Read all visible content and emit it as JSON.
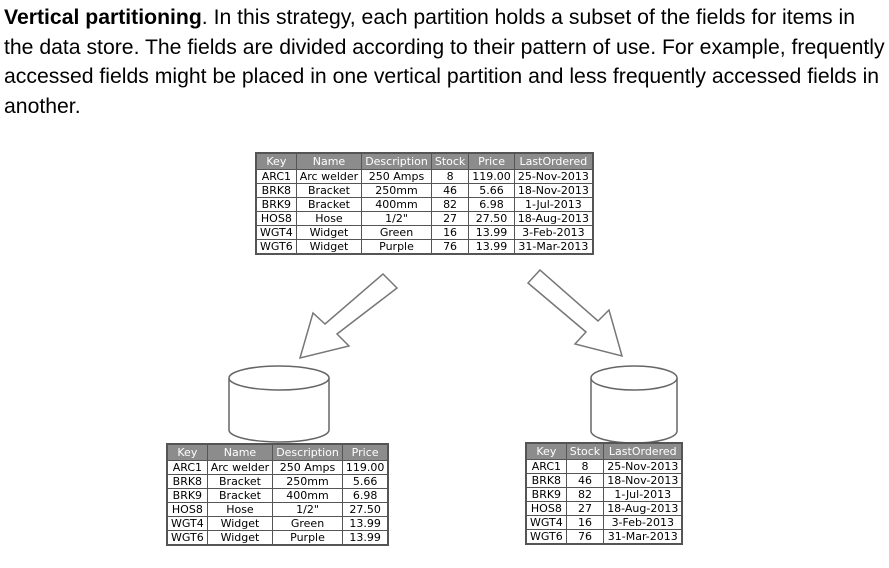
{
  "intro": {
    "term": "Vertical partitioning",
    "text": ". In this strategy, each partition holds a subset of the fields for items in the data store. The fields are divided according to their pattern of use. For example, frequently accessed fields might be placed in one vertical partition and less frequently accessed fields in another."
  },
  "source_table": {
    "headers": [
      "Key",
      "Name",
      "Description",
      "Stock",
      "Price",
      "LastOrdered"
    ],
    "rows": [
      [
        "ARC1",
        "Arc welder",
        "250 Amps",
        "8",
        "119.00",
        "25-Nov-2013"
      ],
      [
        "BRK8",
        "Bracket",
        "250mm",
        "46",
        "5.66",
        "18-Nov-2013"
      ],
      [
        "BRK9",
        "Bracket",
        "400mm",
        "82",
        "6.98",
        "1-Jul-2013"
      ],
      [
        "HOS8",
        "Hose",
        "1/2\"",
        "27",
        "27.50",
        "18-Aug-2013"
      ],
      [
        "WGT4",
        "Widget",
        "Green",
        "16",
        "13.99",
        "3-Feb-2013"
      ],
      [
        "WGT6",
        "Widget",
        "Purple",
        "76",
        "13.99",
        "31-Mar-2013"
      ]
    ]
  },
  "partition_left": {
    "headers": [
      "Key",
      "Name",
      "Description",
      "Price"
    ],
    "rows": [
      [
        "ARC1",
        "Arc welder",
        "250 Amps",
        "119.00"
      ],
      [
        "BRK8",
        "Bracket",
        "250mm",
        "5.66"
      ],
      [
        "BRK9",
        "Bracket",
        "400mm",
        "6.98"
      ],
      [
        "HOS8",
        "Hose",
        "1/2\"",
        "27.50"
      ],
      [
        "WGT4",
        "Widget",
        "Green",
        "13.99"
      ],
      [
        "WGT6",
        "Widget",
        "Purple",
        "13.99"
      ]
    ]
  },
  "partition_right": {
    "headers": [
      "Key",
      "Stock",
      "LastOrdered"
    ],
    "rows": [
      [
        "ARC1",
        "8",
        "25-Nov-2013"
      ],
      [
        "BRK8",
        "46",
        "18-Nov-2013"
      ],
      [
        "BRK9",
        "82",
        "1-Jul-2013"
      ],
      [
        "HOS8",
        "27",
        "18-Aug-2013"
      ],
      [
        "WGT4",
        "16",
        "3-Feb-2013"
      ],
      [
        "WGT6",
        "76",
        "31-Mar-2013"
      ]
    ]
  },
  "colors": {
    "header_fill": "#8c8c8c",
    "border": "#555555",
    "cylinder_stroke": "#666666"
  },
  "icons": [
    "database-cylinder-icon",
    "split-arrow-icon"
  ]
}
